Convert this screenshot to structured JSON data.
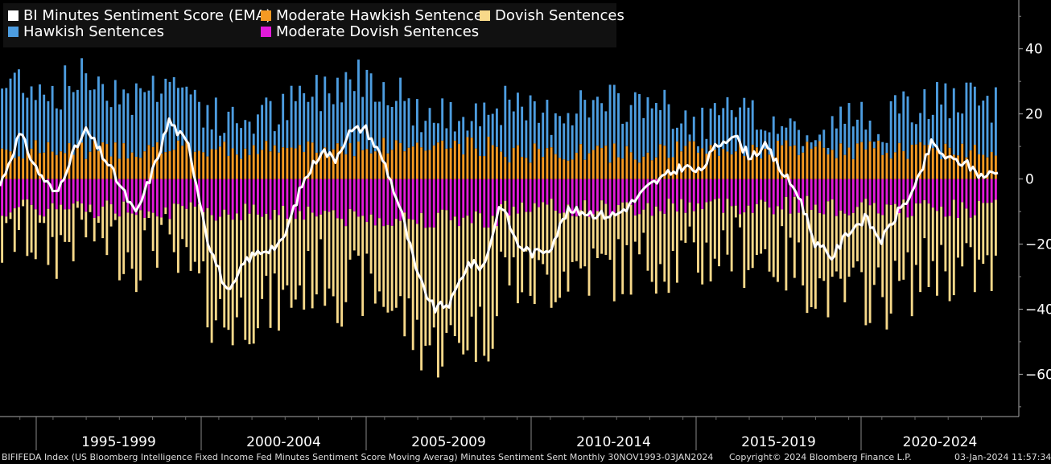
{
  "legend": [
    {
      "label": "BI Minutes Sentiment Score (EMA)",
      "color": "#ffffff"
    },
    {
      "label": "Moderate Hawkish Sentences",
      "color": "#f59a23"
    },
    {
      "label": "Dovish Sentences",
      "color": "#f7d98a"
    },
    {
      "label": "Hawkish Sentences",
      "color": "#4d9de0"
    },
    {
      "label": "Moderate Dovish Sentences",
      "color": "#e21ad9"
    }
  ],
  "chart_data": {
    "type": "bar",
    "title": "",
    "xlabel": "",
    "ylabel": "",
    "ylim": [
      -73,
      55
    ],
    "yticks": [
      40,
      20,
      0,
      -20,
      -40,
      -60
    ],
    "x_range": [
      1993.9,
      2024.0
    ],
    "period_labels": [
      "1995-1999",
      "2000-2004",
      "2005-2009",
      "2010-2014",
      "2015-2019",
      "2020-2024"
    ],
    "period_bounds": [
      1993.9,
      1999.0,
      2004.0,
      2009.0,
      2014.0,
      2019.0,
      2024.0
    ],
    "ema_line": {
      "name": "BI Minutes Sentiment Score (EMA)",
      "x": [
        1993.9,
        1994.5,
        1995.0,
        1995.6,
        1996.0,
        1996.5,
        1997.2,
        1998.0,
        1998.6,
        1999.0,
        1999.6,
        2000.2,
        2000.8,
        2001.3,
        2001.8,
        2002.4,
        2003.0,
        2003.6,
        2004.0,
        2004.4,
        2004.9,
        2005.5,
        2006.0,
        2006.5,
        2007.0,
        2007.5,
        2008.0,
        2008.5,
        2009.0,
        2009.5,
        2010.0,
        2010.5,
        2011.0,
        2011.5,
        2012.0,
        2012.5,
        2013.0,
        2013.5,
        2014.0,
        2014.5,
        2015.0,
        2015.5,
        2016.0,
        2016.5,
        2017.0,
        2017.5,
        2018.0,
        2018.5,
        2019.0,
        2019.5,
        2020.0,
        2020.5,
        2021.0,
        2021.5,
        2022.0,
        2022.5,
        2023.0,
        2023.5,
        2024.0
      ],
      "y": [
        -2,
        14,
        3,
        -5,
        6,
        15,
        4,
        -11,
        5,
        18,
        10,
        -20,
        -36,
        -25,
        -22,
        -20,
        -2,
        9,
        6,
        14,
        16,
        5,
        -10,
        -30,
        -40,
        -38,
        -26,
        -27,
        -7,
        -20,
        -23,
        -21,
        -10,
        -10,
        -11,
        -11,
        -7,
        -2,
        1,
        4,
        2,
        10,
        14,
        7,
        10,
        2,
        -5,
        -20,
        -24,
        -16,
        -12,
        -19,
        -10,
        -3,
        11,
        6,
        5,
        1,
        2
      ]
    },
    "bar_series": [
      {
        "name": "Hawkish Sentences",
        "period_avg": [
          28,
          25,
          28,
          25,
          16,
          22
        ],
        "max": 44
      },
      {
        "name": "Moderate Hawkish Sentences",
        "period_avg": [
          9,
          9,
          10,
          8,
          9,
          9
        ],
        "max": 16
      },
      {
        "name": "Moderate Dovish Sentences",
        "period_avg": [
          -9,
          -10,
          -12,
          -9,
          -8,
          -9
        ],
        "max": -16
      },
      {
        "name": "Dovish Sentences",
        "period_avg": [
          -20,
          -32,
          -38,
          -24,
          -26,
          -30
        ],
        "min": -62
      }
    ]
  },
  "footer": {
    "left": "BIFIFEDA Index (US Bloomberg Intelligence Fixed Income Fed Minutes Sentiment Score Moving Averag) Minutes Sentiment Sent  Monthly 30NOV1993-03JAN2024",
    "center": "Copyright© 2024 Bloomberg Finance L.P.",
    "right": "03-Jan-2024 11:57:34"
  }
}
